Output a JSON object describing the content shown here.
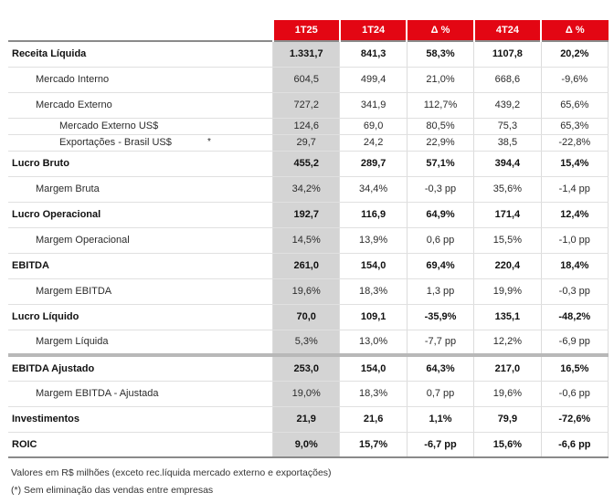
{
  "headers": [
    "1T25",
    "1T24",
    "Δ %",
    "4T24",
    "Δ %"
  ],
  "rows": [
    {
      "label": "Receita Líquida",
      "level": 1,
      "bold": true,
      "cells": [
        "1.331,7",
        "841,3",
        "58,3%",
        "1107,8",
        "20,2%"
      ]
    },
    {
      "label": "Mercado Interno",
      "level": 2,
      "bold": false,
      "cells": [
        "604,5",
        "499,4",
        "21,0%",
        "668,6",
        "-9,6%"
      ]
    },
    {
      "label": "Mercado Externo",
      "level": 2,
      "bold": false,
      "cells": [
        "727,2",
        "341,9",
        "112,7%",
        "439,2",
        "65,6%"
      ]
    },
    {
      "label": "Mercado Externo US$",
      "level": 3,
      "bold": false,
      "cells": [
        "124,6",
        "69,0",
        "80,5%",
        "75,3",
        "65,3%"
      ]
    },
    {
      "label": "Exportações - Brasil US$",
      "level": 3,
      "bold": false,
      "cells": [
        "29,7",
        "24,2",
        "22,9%",
        "38,5",
        "-22,8%"
      ]
    },
    {
      "label": "Lucro Bruto",
      "level": 1,
      "bold": true,
      "cells": [
        "455,2",
        "289,7",
        "57,1%",
        "394,4",
        "15,4%"
      ]
    },
    {
      "label": "Margem Bruta",
      "level": 2,
      "bold": false,
      "cells": [
        "34,2%",
        "34,4%",
        "-0,3 pp",
        "35,6%",
        "-1,4 pp"
      ]
    },
    {
      "label": "Lucro Operacional",
      "level": 1,
      "bold": true,
      "cells": [
        "192,7",
        "116,9",
        "64,9%",
        "171,4",
        "12,4%"
      ]
    },
    {
      "label": "Margem Operacional",
      "level": 2,
      "bold": false,
      "cells": [
        "14,5%",
        "13,9%",
        "0,6 pp",
        "15,5%",
        "-1,0 pp"
      ]
    },
    {
      "label": "EBITDA",
      "level": 1,
      "bold": true,
      "cells": [
        "261,0",
        "154,0",
        "69,4%",
        "220,4",
        "18,4%"
      ]
    },
    {
      "label": "Margem EBITDA",
      "level": 2,
      "bold": false,
      "cells": [
        "19,6%",
        "18,3%",
        "1,3 pp",
        "19,9%",
        "-0,3 pp"
      ]
    },
    {
      "label": "Lucro Líquido",
      "level": 1,
      "bold": true,
      "cells": [
        "70,0",
        "109,1",
        "-35,9%",
        "135,1",
        "-48,2%"
      ]
    },
    {
      "label": "Margem Líquida",
      "level": 2,
      "bold": false,
      "cells": [
        "5,3%",
        "13,0%",
        "-7,7 pp",
        "12,2%",
        "-6,9 pp"
      ]
    },
    {
      "label": "EBITDA Ajustado",
      "level": 1,
      "bold": true,
      "cells": [
        "253,0",
        "154,0",
        "64,3%",
        "217,0",
        "16,5%"
      ]
    },
    {
      "label": "Margem EBITDA - Ajustada",
      "level": 2,
      "bold": false,
      "cells": [
        "19,0%",
        "18,3%",
        "0,7 pp",
        "19,6%",
        "-0,6 pp"
      ]
    },
    {
      "label": "Investimentos",
      "level": 1,
      "bold": true,
      "cells": [
        "21,9",
        "21,6",
        "1,1%",
        "79,9",
        "-72,6%"
      ]
    },
    {
      "label": "ROIC",
      "level": 1,
      "bold": true,
      "cells": [
        "9,0%",
        "15,7%",
        "-6,7 pp",
        "15,6%",
        "-6,6 pp"
      ]
    }
  ],
  "asterisk": "*",
  "notes": {
    "units": "Valores em R$ milhões (exceto rec.líquida mercado externo e exportações)",
    "footnote": "(*) Sem eliminação das vendas entre empresas"
  },
  "colors": {
    "header_bg": "#e30613",
    "highlight_col": "#d4d4d4"
  }
}
